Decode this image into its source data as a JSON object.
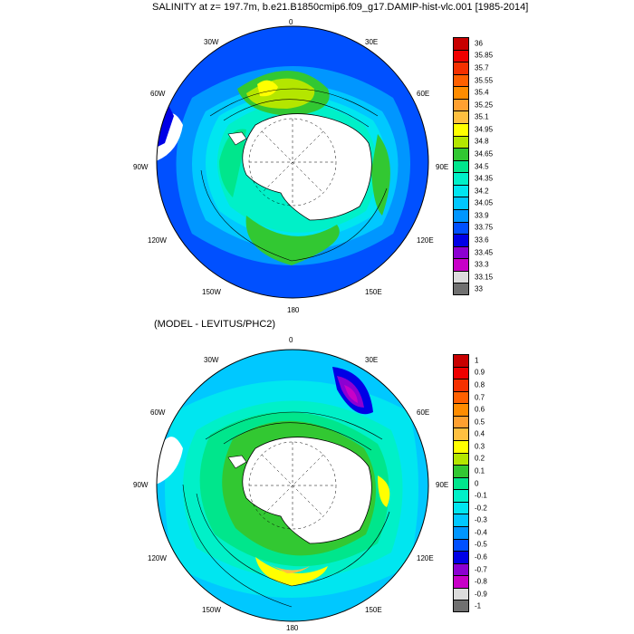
{
  "panel1": {
    "title": "SALINITY at z= 197.7m, b.e21.B1850cmip6.f09_g17.DAMIP-hist-vlc.001 [1985-2014]",
    "lon_labels": {
      "top": "0",
      "tr": "30E",
      "r1": "60E",
      "right": "90E",
      "r2": "120E",
      "br": "150E",
      "bottom": "180",
      "bl": "150W",
      "l2": "120W",
      "left": "90W",
      "l1": "60W",
      "tl": "30W"
    },
    "colorbar": {
      "levels": [
        "36",
        "35.85",
        "35.7",
        "35.55",
        "35.4",
        "35.25",
        "35.1",
        "34.95",
        "34.8",
        "34.65",
        "34.5",
        "34.35",
        "34.2",
        "34.05",
        "33.9",
        "33.75",
        "33.6",
        "33.45",
        "33.3",
        "33.15",
        "33"
      ],
      "colors": [
        "#c80000",
        "#f00000",
        "#f53000",
        "#ff6000",
        "#ff8c00",
        "#ffa030",
        "#ffc040",
        "#ffff00",
        "#b4e600",
        "#32c832",
        "#00e68c",
        "#00f0c8",
        "#00e6f0",
        "#00c8ff",
        "#0096ff",
        "#0050ff",
        "#0000e6",
        "#8c00d2",
        "#c800c8",
        "#dcdcdc",
        "#707070"
      ]
    }
  },
  "panel2": {
    "title": "(MODEL - LEVITUS/PHC2)",
    "lon_labels": {
      "top": "0",
      "tr": "30E",
      "r1": "60E",
      "right": "90E",
      "r2": "120E",
      "br": "150E",
      "bottom": "180",
      "bl": "150W",
      "l2": "120W",
      "left": "90W",
      "l1": "60W",
      "tl": "30W"
    },
    "colorbar": {
      "levels": [
        "1",
        "0.9",
        "0.8",
        "0.7",
        "0.6",
        "0.5",
        "0.4",
        "0.3",
        "0.2",
        "0.1",
        "0",
        "-0.1",
        "-0.2",
        "-0.3",
        "-0.4",
        "-0.5",
        "-0.6",
        "-0.7",
        "-0.8",
        "-0.9",
        "-1"
      ],
      "colors": [
        "#c80000",
        "#f00000",
        "#f53000",
        "#ff6000",
        "#ff8c00",
        "#ffa030",
        "#ffc040",
        "#ffff00",
        "#b4e600",
        "#32c832",
        "#00e68c",
        "#00f0c8",
        "#00e6f0",
        "#00c8ff",
        "#0096ff",
        "#0050ff",
        "#0000e6",
        "#8c00d2",
        "#c800c8",
        "#dcdcdc",
        "#707070"
      ]
    }
  }
}
